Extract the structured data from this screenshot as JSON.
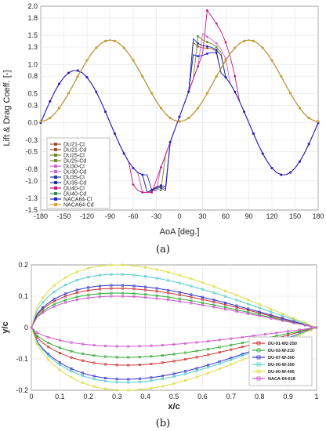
{
  "panel_labels": [
    "(a)",
    "(b)"
  ],
  "chart_data": [
    {
      "type": "line",
      "panel": "(a)",
      "xlabel": "AoA [deg.]",
      "ylabel": "Lift & Drag Coeff. [-]",
      "xlim": [
        -180,
        180
      ],
      "ylim": [
        -1.5,
        2.0
      ],
      "x_ticks": [
        "-180",
        "-150",
        "-120",
        "-90",
        "-60",
        "-30",
        "0",
        "30",
        "60",
        "90",
        "120",
        "150",
        "180"
      ],
      "y_ticks": [
        "-1.5",
        "-1.3",
        "-1.0",
        "-0.8",
        "-0.5",
        "-0.3",
        "0.0",
        "0.3",
        "0.5",
        "0.8",
        "1.0",
        "1.3",
        "1.5",
        "1.8",
        "2.0"
      ],
      "grid": true,
      "legend_position": "lower-left",
      "series": [
        {
          "name": "DU21-Cl",
          "color": "#a0522d",
          "kind": "cl",
          "stall_angle": 14,
          "stall_peak": 1.45
        },
        {
          "name": "DU21-Cd",
          "color": "#a0522d",
          "kind": "cd"
        },
        {
          "name": "DU25-Cl",
          "color": "#6b8e23",
          "kind": "cl",
          "stall_angle": 20,
          "stall_peak": 1.55
        },
        {
          "name": "DU25-Cd",
          "color": "#6b8e23",
          "kind": "cd"
        },
        {
          "name": "DU30-Cl",
          "color": "#cc66cc",
          "kind": "cl",
          "stall_angle": 24,
          "stall_peak": 1.62
        },
        {
          "name": "DU30-Cd",
          "color": "#cc66cc",
          "kind": "cd"
        },
        {
          "name": "DU35-Cl",
          "color": "#1e3a9e",
          "kind": "cl",
          "stall_angle": 16,
          "stall_peak": 1.48
        },
        {
          "name": "DU35-Cd",
          "color": "#1e3a9e",
          "kind": "cd"
        },
        {
          "name": "DU40-Cl",
          "color": "#c71585",
          "kind": "cl",
          "stall_angle": 35,
          "stall_peak": 1.95
        },
        {
          "name": "DU40-Cd",
          "color": "#2e8b57",
          "kind": "cd"
        },
        {
          "name": "NACA64-Cl",
          "color": "#2020cc",
          "kind": "cl",
          "stall_angle": 12,
          "stall_peak": 1.25
        },
        {
          "name": "NACA64-Cd",
          "color": "#e0a020",
          "kind": "cd"
        }
      ]
    },
    {
      "type": "line",
      "panel": "(b)",
      "xlabel": "x/c",
      "ylabel": "y/c",
      "xlim": [
        0,
        1
      ],
      "ylim": [
        -0.2,
        0.2
      ],
      "x_ticks": [
        "0",
        "0.1",
        "0.2",
        "0.3",
        "0.4",
        "0.5",
        "0.6",
        "0.7",
        "0.8",
        "0.9",
        "1"
      ],
      "y_ticks": [
        "-0.2",
        "-0.1",
        "0",
        "0.1",
        "0.2"
      ],
      "grid": true,
      "legend_position": "lower-right",
      "series": [
        {
          "name": "DU-91-W2-250",
          "color": "#cc3333",
          "upper_max": 0.125,
          "lower_min": -0.12
        },
        {
          "name": "DU-93-W-210",
          "color": "#33aa33",
          "upper_max": 0.11,
          "lower_min": -0.095
        },
        {
          "name": "DU-97-W-300",
          "color": "#3333cc",
          "upper_max": 0.135,
          "lower_min": -0.165
        },
        {
          "name": "DU-00-W-350",
          "color": "#55cccc",
          "upper_max": 0.17,
          "lower_min": -0.175
        },
        {
          "name": "DU-00-W-405",
          "color": "#dddd44",
          "upper_max": 0.2,
          "lower_min": -0.2
        },
        {
          "name": "NACA-64-618",
          "color": "#cc55cc",
          "upper_max": 0.1,
          "lower_min": -0.06
        }
      ]
    }
  ]
}
